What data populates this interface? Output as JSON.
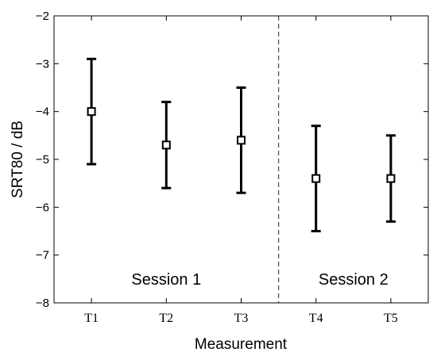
{
  "chart_data": {
    "type": "scatter",
    "title": "",
    "xlabel": "Measurement",
    "ylabel": "SRT80 / dB",
    "categories": [
      "T1",
      "T2",
      "T3",
      "T4",
      "T5"
    ],
    "ylim": [
      -8,
      -2
    ],
    "yticks": [
      "−8",
      "−7",
      "−6",
      "−5",
      "−4",
      "−3",
      "−2"
    ],
    "ytick_values": [
      -8,
      -7,
      -6,
      -5,
      -4,
      -3,
      -2
    ],
    "series": [
      {
        "marker": "square",
        "values": [
          -4.0,
          -4.7,
          -4.6,
          -5.4,
          -5.4
        ],
        "lower": [
          -5.1,
          -5.6,
          -5.7,
          -6.5,
          -6.3
        ],
        "upper": [
          -2.9,
          -3.8,
          -3.5,
          -4.3,
          -4.5
        ]
      }
    ],
    "divider": {
      "between": [
        "T3",
        "T4"
      ],
      "style": "dashed"
    },
    "annotations": [
      {
        "text": "Session 1",
        "x": 2,
        "y": -7.5
      },
      {
        "text": "Session 2",
        "x": 4.5,
        "y": -7.5
      }
    ],
    "grid": false,
    "legend": "none",
    "colors": {
      "marks": "#000000",
      "axes": "#000000",
      "divider": "#555555"
    }
  }
}
